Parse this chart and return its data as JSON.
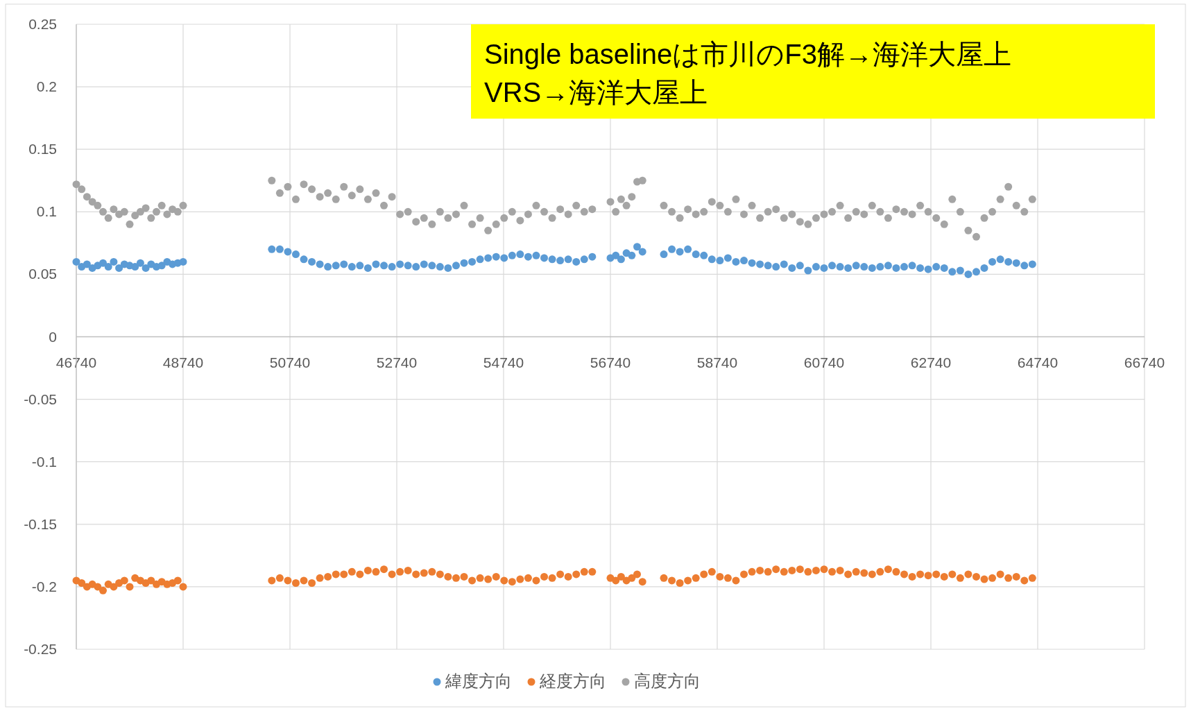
{
  "chart_data": {
    "type": "scatter",
    "marker": "circle",
    "grid": true,
    "legend": "bottom",
    "annotations": [
      "Single baselineは市川のF3解→海洋大屋上",
      "VRS→海洋大屋上"
    ],
    "xlim": [
      46740,
      66740
    ],
    "xticks": [
      46740,
      48740,
      50740,
      52740,
      54740,
      56740,
      58740,
      60740,
      62740,
      64740,
      66740
    ],
    "ylim": [
      -0.25,
      0.25
    ],
    "yticks": [
      -0.25,
      -0.2,
      -0.15,
      -0.1,
      -0.05,
      0,
      0.05,
      0.1,
      0.15,
      0.2,
      0.25
    ],
    "x": [
      46740,
      46840,
      46940,
      47040,
      47140,
      47240,
      47340,
      47440,
      47540,
      47640,
      47740,
      47840,
      47940,
      48040,
      48140,
      48240,
      48340,
      48440,
      48540,
      48640,
      48740,
      50400,
      50550,
      50700,
      50850,
      51000,
      51150,
      51300,
      51450,
      51600,
      51750,
      51900,
      52050,
      52200,
      52350,
      52500,
      52650,
      52800,
      52950,
      53100,
      53250,
      53400,
      53550,
      53700,
      53850,
      54000,
      54150,
      54300,
      54450,
      54600,
      54750,
      54900,
      55050,
      55200,
      55350,
      55500,
      55650,
      55800,
      55950,
      56100,
      56250,
      56400,
      56740,
      56840,
      56940,
      57040,
      57140,
      57240,
      57340,
      57740,
      57890,
      58040,
      58190,
      58340,
      58490,
      58640,
      58790,
      58940,
      59090,
      59240,
      59390,
      59540,
      59690,
      59840,
      59990,
      60140,
      60290,
      60440,
      60590,
      60740,
      60890,
      61040,
      61190,
      61340,
      61490,
      61640,
      61790,
      61940,
      62090,
      62240,
      62390,
      62540,
      62690,
      62840,
      62990,
      63140,
      63290,
      63440,
      63590,
      63740,
      63890,
      64040,
      64190,
      64340,
      64490,
      64640
    ],
    "series": [
      {
        "name": "緯度方向",
        "color": "#5b9bd5",
        "values": [
          0.06,
          0.056,
          0.058,
          0.055,
          0.057,
          0.059,
          0.056,
          0.06,
          0.055,
          0.058,
          0.057,
          0.056,
          0.059,
          0.055,
          0.058,
          0.056,
          0.057,
          0.06,
          0.058,
          0.059,
          0.06,
          0.07,
          0.07,
          0.068,
          0.066,
          0.062,
          0.06,
          0.058,
          0.056,
          0.057,
          0.058,
          0.056,
          0.057,
          0.055,
          0.058,
          0.057,
          0.056,
          0.058,
          0.057,
          0.056,
          0.058,
          0.057,
          0.056,
          0.055,
          0.057,
          0.059,
          0.06,
          0.062,
          0.063,
          0.064,
          0.063,
          0.065,
          0.066,
          0.064,
          0.065,
          0.063,
          0.062,
          0.061,
          0.062,
          0.06,
          0.062,
          0.064,
          0.063,
          0.065,
          0.062,
          0.067,
          0.065,
          0.072,
          0.068,
          0.066,
          0.07,
          0.068,
          0.07,
          0.066,
          0.065,
          0.062,
          0.061,
          0.063,
          0.06,
          0.061,
          0.059,
          0.058,
          0.057,
          0.056,
          0.058,
          0.055,
          0.057,
          0.053,
          0.056,
          0.055,
          0.057,
          0.056,
          0.055,
          0.057,
          0.056,
          0.055,
          0.056,
          0.057,
          0.055,
          0.056,
          0.057,
          0.055,
          0.054,
          0.056,
          0.055,
          0.052,
          0.053,
          0.05,
          0.052,
          0.055,
          0.06,
          0.062,
          0.06,
          0.059,
          0.057,
          0.058
        ]
      },
      {
        "name": "経度方向",
        "color": "#ed7d31",
        "values": [
          -0.195,
          -0.197,
          -0.2,
          -0.198,
          -0.2,
          -0.203,
          -0.198,
          -0.2,
          -0.197,
          -0.195,
          -0.2,
          -0.193,
          -0.195,
          -0.197,
          -0.195,
          -0.198,
          -0.196,
          -0.198,
          -0.197,
          -0.195,
          -0.2,
          -0.195,
          -0.193,
          -0.195,
          -0.197,
          -0.195,
          -0.197,
          -0.193,
          -0.192,
          -0.19,
          -0.19,
          -0.188,
          -0.19,
          -0.187,
          -0.188,
          -0.186,
          -0.19,
          -0.188,
          -0.187,
          -0.19,
          -0.189,
          -0.188,
          -0.19,
          -0.192,
          -0.193,
          -0.192,
          -0.195,
          -0.193,
          -0.194,
          -0.192,
          -0.195,
          -0.196,
          -0.194,
          -0.193,
          -0.195,
          -0.192,
          -0.193,
          -0.19,
          -0.192,
          -0.19,
          -0.188,
          -0.188,
          -0.193,
          -0.195,
          -0.192,
          -0.195,
          -0.193,
          -0.19,
          -0.196,
          -0.193,
          -0.195,
          -0.197,
          -0.195,
          -0.193,
          -0.19,
          -0.188,
          -0.192,
          -0.193,
          -0.195,
          -0.19,
          -0.188,
          -0.187,
          -0.188,
          -0.186,
          -0.188,
          -0.187,
          -0.186,
          -0.188,
          -0.187,
          -0.186,
          -0.188,
          -0.187,
          -0.19,
          -0.188,
          -0.189,
          -0.19,
          -0.188,
          -0.186,
          -0.188,
          -0.19,
          -0.192,
          -0.19,
          -0.191,
          -0.19,
          -0.192,
          -0.19,
          -0.193,
          -0.19,
          -0.192,
          -0.194,
          -0.193,
          -0.19,
          -0.193,
          -0.192,
          -0.195,
          -0.193
        ]
      },
      {
        "name": "高度方向",
        "color": "#a5a5a5",
        "values": [
          0.122,
          0.118,
          0.112,
          0.108,
          0.105,
          0.1,
          0.095,
          0.102,
          0.098,
          0.1,
          0.09,
          0.097,
          0.1,
          0.103,
          0.095,
          0.1,
          0.105,
          0.098,
          0.102,
          0.1,
          0.105,
          0.125,
          0.115,
          0.12,
          0.11,
          0.122,
          0.118,
          0.112,
          0.115,
          0.11,
          0.12,
          0.113,
          0.118,
          0.11,
          0.115,
          0.105,
          0.112,
          0.098,
          0.1,
          0.092,
          0.095,
          0.09,
          0.1,
          0.095,
          0.098,
          0.105,
          0.09,
          0.095,
          0.085,
          0.09,
          0.095,
          0.1,
          0.093,
          0.098,
          0.105,
          0.1,
          0.095,
          0.102,
          0.098,
          0.105,
          0.1,
          0.102,
          0.108,
          0.1,
          0.11,
          0.105,
          0.112,
          0.124,
          0.125,
          0.105,
          0.1,
          0.095,
          0.102,
          0.098,
          0.1,
          0.108,
          0.105,
          0.1,
          0.11,
          0.098,
          0.105,
          0.095,
          0.1,
          0.102,
          0.095,
          0.098,
          0.092,
          0.09,
          0.095,
          0.098,
          0.1,
          0.105,
          0.095,
          0.1,
          0.098,
          0.105,
          0.1,
          0.095,
          0.102,
          0.1,
          0.098,
          0.105,
          0.1,
          0.095,
          0.09,
          0.11,
          0.1,
          0.085,
          0.08,
          0.095,
          0.1,
          0.11,
          0.12,
          0.105,
          0.1,
          0.11
        ]
      }
    ]
  }
}
